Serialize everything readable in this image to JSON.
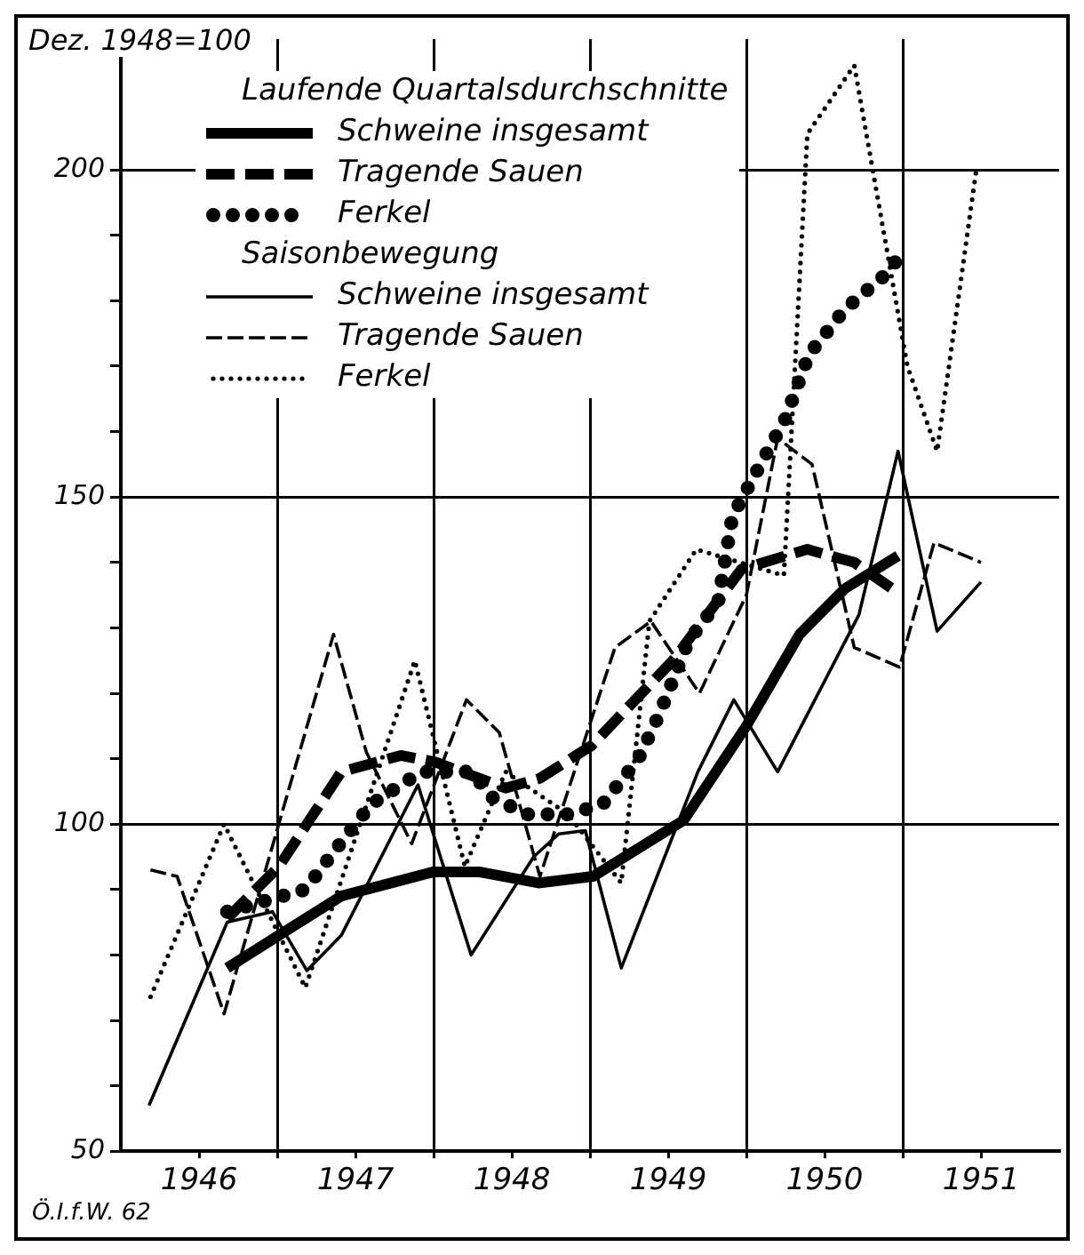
{
  "chart_data": {
    "type": "line",
    "ylabel": "Dez. 1948=100",
    "legend_title": "Laufende Quartalsdurchschnitte",
    "legend": "top left",
    "grid": true,
    "annotations": [
      "Saisonbewegung",
      "Ö.I.f.W. 62"
    ],
    "xlim": [
      1946,
      1952
    ],
    "xticks": [
      {
        "value": 1946.5,
        "label": "1946"
      },
      {
        "value": 1947,
        "label": null
      },
      {
        "value": 1947.5,
        "label": "1947"
      },
      {
        "value": 1948,
        "label": null
      },
      {
        "value": 1948.5,
        "label": "1948"
      },
      {
        "value": 1949,
        "label": null
      },
      {
        "value": 1949.5,
        "label": "1949"
      },
      {
        "value": 1950,
        "label": null
      },
      {
        "value": 1950.5,
        "label": "1950"
      },
      {
        "value": 1951,
        "label": null
      },
      {
        "value": 1951.5,
        "label": "1951"
      }
    ],
    "ylim": [
      50,
      220
    ],
    "yticks": [
      50,
      {
        "value": 60,
        "label": null
      },
      {
        "value": 70,
        "label": null
      },
      {
        "value": 80,
        "label": null
      },
      {
        "value": 90,
        "label": null
      },
      100,
      {
        "value": 110,
        "label": null
      },
      {
        "value": 120,
        "label": null
      },
      {
        "value": 130,
        "label": null
      },
      {
        "value": 140,
        "label": null
      },
      150,
      {
        "value": 160,
        "label": null
      },
      {
        "value": 170,
        "label": null
      },
      {
        "value": 180,
        "label": null
      },
      {
        "value": 190,
        "label": null
      },
      200
    ],
    "series": [
      {
        "name": "Schweine insgesamt",
        "color": "#000000",
        "line_style": "solid",
        "x": [
          1946.68,
          1947.01,
          1947.41,
          1948.0,
          1948.29,
          1948.67,
          1949.02,
          1949.6,
          1950.0,
          1950.34,
          1950.63,
          1950.97
        ],
        "values": [
          78,
          83,
          89,
          92.7,
          92.7,
          91,
          92,
          100.6,
          115,
          129,
          136,
          141
        ]
      },
      {
        "name": "Tragende Sauen",
        "color": "#000000",
        "line_style": "dashed",
        "x": [
          1946.68,
          1947.01,
          1947.41,
          1947.79,
          1948.01,
          1948.46,
          1948.68,
          1949.01,
          1949.53,
          1949.97,
          1950.39,
          1950.69,
          1950.95
        ],
        "values": [
          85.6,
          93.5,
          108,
          110.5,
          109.5,
          105.5,
          107,
          112,
          125,
          139,
          142,
          140,
          135.7
        ]
      },
      {
        "name": "Ferkel",
        "color": "#000000",
        "line_style": "dotted",
        "x": [
          1946.68,
          1947.18,
          1947.35,
          1947.6,
          1947.92,
          1948.24,
          1948.38,
          1948.6,
          1948.86,
          1949.08,
          1949.31,
          1949.44,
          1949.63,
          1949.82,
          1949.91,
          1950.0,
          1950.25,
          1950.4,
          1950.63,
          1950.89,
          1951.02
        ],
        "values": [
          86.6,
          90,
          95.4,
          103,
          108,
          108,
          104,
          101.5,
          101.5,
          103,
          110,
          116.6,
          128,
          134,
          147,
          151,
          162,
          171.8,
          178.7,
          184,
          188
        ]
      },
      {
        "name": "Schweine insgesamt",
        "color": "#000000",
        "line_style": "solid",
        "x": [
          1946.18,
          1946.68,
          1946.97,
          1947.19,
          1947.41,
          1947.9,
          1948.24,
          1948.64,
          1948.8,
          1948.97,
          1949.2,
          1949.69,
          1949.92,
          1950.2,
          1950.72,
          1950.97,
          1951.22,
          1951.5
        ],
        "values": [
          57,
          85,
          86.6,
          77.6,
          83,
          106,
          80,
          95,
          98.5,
          99,
          78,
          108,
          119,
          108,
          132,
          157,
          129.5,
          137
        ]
      },
      {
        "name": "Tragende Sauen",
        "color": "#000000",
        "line_style": "dashed",
        "x": [
          1946.19,
          1946.36,
          1946.66,
          1947.36,
          1947.57,
          1947.86,
          1948.21,
          1948.42,
          1948.68,
          1949.16,
          1949.39,
          1949.7,
          1950.0,
          1950.2,
          1950.42,
          1950.69,
          1950.98,
          1951.2,
          1951.5
        ],
        "values": [
          93,
          92,
          71,
          129,
          111,
          97,
          119,
          114,
          92,
          127,
          131,
          120,
          135,
          159,
          155,
          127,
          124,
          143,
          140
        ]
      },
      {
        "name": "Ferkel",
        "color": "#000000",
        "line_style": "dotted",
        "x": [
          1946.19,
          1946.66,
          1947.18,
          1947.88,
          1948.2,
          1948.46,
          1948.86,
          1949.2,
          1949.38,
          1949.68,
          1950.24,
          1950.39,
          1950.69,
          1951.03,
          1951.22,
          1951.47
        ],
        "values": [
          73.6,
          100,
          75,
          125,
          93.5,
          108,
          101.5,
          91,
          131,
          142,
          138,
          205.5,
          216,
          170,
          157,
          200
        ]
      }
    ]
  }
}
